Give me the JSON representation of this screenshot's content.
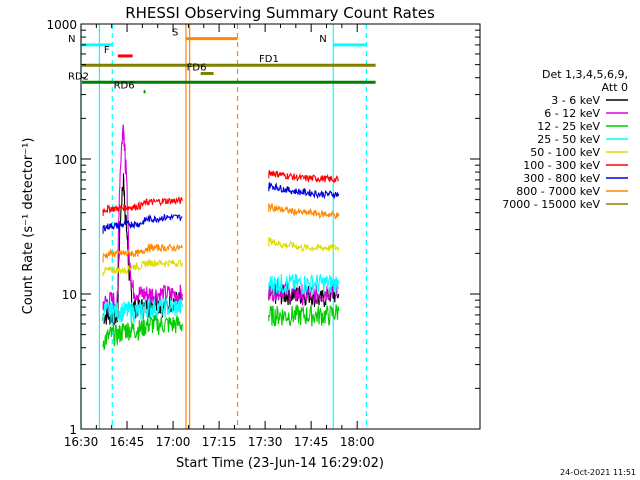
{
  "chart_data": {
    "type": "line",
    "title": "RHESSI Observing Summary Count Rates",
    "xlabel": "Start Time (23-Jun-14 16:29:02)",
    "ylabel": "Count Rate (s⁻¹ detector⁻¹)",
    "y_scale": "log",
    "ylim": [
      1,
      1000
    ],
    "xlim_minutes": [
      16.5,
      18.667
    ],
    "x_ticks": [
      {
        "value": 16.5,
        "label": "16:30"
      },
      {
        "value": 16.75,
        "label": "16:45"
      },
      {
        "value": 17.0,
        "label": "17:00"
      },
      {
        "value": 17.25,
        "label": "17:15"
      },
      {
        "value": 17.5,
        "label": "17:30"
      },
      {
        "value": 17.75,
        "label": "17:45"
      },
      {
        "value": 18.0,
        "label": "18:00"
      }
    ],
    "y_ticks": [
      {
        "value": 1,
        "label": "1"
      },
      {
        "value": 10,
        "label": "10"
      },
      {
        "value": 100,
        "label": "100"
      },
      {
        "value": 1000,
        "label": "1000"
      }
    ],
    "legend_header": [
      "Det 1,3,4,5,6,9,",
      "Att 0"
    ],
    "legend_position": "right",
    "series": [
      {
        "name": "3 - 6 keV",
        "color": "#000000",
        "segments": [
          {
            "x": [
              16.62,
              16.66,
              16.7,
              16.73,
              16.74,
              16.76,
              16.78,
              16.82,
              16.86,
              16.9,
              16.95,
              17.0,
              17.05
            ],
            "y": [
              7,
              7,
              7,
              70,
              40,
              15,
              8,
              8,
              8,
              9,
              8,
              9,
              9
            ]
          },
          {
            "x": [
              17.52,
              17.56,
              17.6,
              17.65,
              17.7,
              17.75,
              17.8,
              17.85,
              17.9
            ],
            "y": [
              10,
              10,
              10,
              10,
              10,
              10,
              9,
              10,
              10
            ]
          }
        ]
      },
      {
        "name": "6 - 12 keV",
        "color": "#dd00dd",
        "segments": [
          {
            "x": [
              16.62,
              16.66,
              16.7,
              16.73,
              16.74,
              16.76,
              16.78,
              16.82,
              16.86,
              16.9,
              16.95,
              17.0,
              17.05
            ],
            "y": [
              8.5,
              9,
              9,
              180,
              100,
              18,
              11,
              10,
              10,
              10,
              10,
              10,
              10
            ]
          },
          {
            "x": [
              17.52,
              17.56,
              17.6,
              17.65,
              17.7,
              17.75,
              17.8,
              17.85,
              17.9
            ],
            "y": [
              10,
              11,
              11,
              10,
              10,
              10,
              10,
              11,
              11
            ]
          }
        ]
      },
      {
        "name": "12 - 25 keV",
        "color": "#00cc00",
        "segments": [
          {
            "x": [
              16.62,
              16.66,
              16.7,
              16.74,
              16.78,
              16.82,
              16.86,
              16.9,
              16.95,
              17.0,
              17.05
            ],
            "y": [
              4.5,
              5,
              5,
              5.5,
              5.5,
              5.5,
              6,
              6,
              6,
              6,
              6
            ]
          },
          {
            "x": [
              17.52,
              17.56,
              17.6,
              17.65,
              17.7,
              17.75,
              17.8,
              17.85,
              17.9
            ],
            "y": [
              7,
              7,
              7,
              7,
              7,
              7,
              7,
              7,
              7.5
            ]
          }
        ]
      },
      {
        "name": "25 - 50 keV",
        "color": "#00ffff",
        "segments": [
          {
            "x": [
              16.62,
              16.66,
              16.7,
              16.74,
              16.78,
              16.82,
              16.86,
              16.9,
              16.95,
              17.0,
              17.05
            ],
            "y": [
              7.5,
              7.5,
              7.5,
              7.5,
              7.5,
              7.5,
              8,
              8,
              8,
              8,
              8
            ]
          },
          {
            "x": [
              17.52,
              17.56,
              17.6,
              17.65,
              17.7,
              17.75,
              17.8,
              17.85,
              17.9
            ],
            "y": [
              12,
              12,
              12,
              12,
              12,
              12,
              12,
              12,
              12
            ]
          }
        ]
      },
      {
        "name": "50 - 100 keV",
        "color": "#dddd00",
        "segments": [
          {
            "x": [
              16.62,
              16.66,
              16.7,
              16.74,
              16.78,
              16.82,
              16.86,
              16.9,
              16.95,
              17.0,
              17.05
            ],
            "y": [
              15,
              15,
              15,
              15,
              16,
              16,
              17,
              17,
              17,
              17,
              17
            ]
          },
          {
            "x": [
              17.52,
              17.56,
              17.6,
              17.65,
              17.7,
              17.75,
              17.8,
              17.85,
              17.9
            ],
            "y": [
              25,
              24,
              23,
              23,
              22,
              22,
              22,
              22,
              22
            ]
          }
        ]
      },
      {
        "name": "100 - 300 keV",
        "color": "#ff0000",
        "segments": [
          {
            "x": [
              16.62,
              16.66,
              16.7,
              16.74,
              16.78,
              16.82,
              16.86,
              16.9,
              16.95,
              17.0,
              17.05
            ],
            "y": [
              42,
              43,
              43,
              44,
              44,
              45,
              48,
              48,
              49,
              49,
              49
            ]
          },
          {
            "x": [
              17.52,
              17.56,
              17.6,
              17.65,
              17.7,
              17.75,
              17.8,
              17.85,
              17.9
            ],
            "y": [
              80,
              78,
              76,
              74,
              72,
              72,
              72,
              71,
              70
            ]
          }
        ]
      },
      {
        "name": "300 - 800 keV",
        "color": "#0000dd",
        "segments": [
          {
            "x": [
              16.62,
              16.66,
              16.7,
              16.74,
              16.78,
              16.82,
              16.86,
              16.9,
              16.95,
              17.0,
              17.05
            ],
            "y": [
              31,
              32,
              32,
              33,
              33,
              33,
              36,
              36,
              37,
              37,
              37
            ]
          },
          {
            "x": [
              17.52,
              17.56,
              17.6,
              17.65,
              17.7,
              17.75,
              17.8,
              17.85,
              17.9
            ],
            "y": [
              64,
              62,
              60,
              58,
              57,
              56,
              55,
              55,
              55
            ]
          }
        ]
      },
      {
        "name": "800 - 7000 keV",
        "color": "#ff8800",
        "segments": [
          {
            "x": [
              16.62,
              16.66,
              16.7,
              16.74,
              16.78,
              16.82,
              16.86,
              16.9,
              16.95,
              17.0,
              17.05
            ],
            "y": [
              19,
              20,
              20,
              20,
              20,
              20,
              22,
              22,
              22,
              22,
              22
            ]
          },
          {
            "x": [
              17.52,
              17.56,
              17.6,
              17.65,
              17.7,
              17.75,
              17.8,
              17.85,
              17.9
            ],
            "y": [
              45,
              43,
              42,
              41,
              40,
              40,
              39,
              39,
              38
            ]
          }
        ]
      },
      {
        "name": "7000 - 15000 keV",
        "color": "#808000",
        "segments": []
      }
    ],
    "flags": [
      {
        "name": "N",
        "color": "#00ffff",
        "x": [
          16.5,
          16.67
        ],
        "y": 700
      },
      {
        "name": "N",
        "color": "#00ffff",
        "x": [
          17.87,
          18.05
        ],
        "y": 700
      },
      {
        "name": "F",
        "color": "#ff0000",
        "x": [
          16.7,
          16.78
        ],
        "y": 580
      },
      {
        "name": "S",
        "color": "#ff8800",
        "x": [
          17.07,
          17.35
        ],
        "y": 780
      },
      {
        "name": "FD1",
        "color": "#808000",
        "x": [
          16.5,
          18.1
        ],
        "y": 495
      },
      {
        "name": "FD6",
        "color": "#808000",
        "x": [
          17.15,
          17.22
        ],
        "y": 430
      },
      {
        "name": "RD2",
        "color": "#008000",
        "x": [
          16.5,
          18.1
        ],
        "y": 370
      },
      {
        "name": "RD6",
        "color": "#008000",
        "x": [
          16.84,
          16.85
        ],
        "y": 315
      }
    ],
    "vertical_lines": [
      {
        "x": 16.5,
        "color": "#00ffff",
        "style": "solid"
      },
      {
        "x": 16.6,
        "color": "#00ffff",
        "style": "solid"
      },
      {
        "x": 16.67,
        "color": "#00ffff",
        "style": "dashed"
      },
      {
        "x": 17.07,
        "color": "#ff8800",
        "style": "solid"
      },
      {
        "x": 17.09,
        "color": "#ff8800",
        "style": "solid"
      },
      {
        "x": 17.35,
        "color": "#ff8800",
        "style": "dashed"
      },
      {
        "x": 17.87,
        "color": "#00ffff",
        "style": "solid"
      },
      {
        "x": 18.05,
        "color": "#00ffff",
        "style": "dashed"
      }
    ],
    "timestamp": "24-Oct-2021 11:51"
  }
}
